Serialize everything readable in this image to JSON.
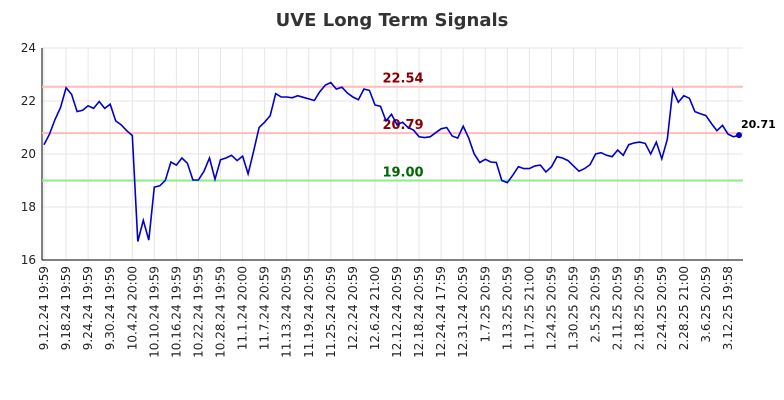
{
  "chart_data": {
    "type": "line",
    "title": "UVE Long Term Signals",
    "ylim": [
      16,
      24
    ],
    "yticks": [
      16,
      18,
      20,
      22,
      24
    ],
    "grid": true,
    "line_color": "#0000cc",
    "xticks": [
      "9.12.24 19:59",
      "9.18.24 19:59",
      "9.24.24 19:59",
      "9.30.24 19:59",
      "10.4.24 20:00",
      "10.10.24 19:59",
      "10.16.24 19:59",
      "10.22.24 19:59",
      "10.28.24 19:59",
      "11.1.24 20:00",
      "11.7.24 20:59",
      "11.13.24 20:59",
      "11.19.24 20:59",
      "11.25.24 20:59",
      "12.2.24 20:59",
      "12.6.24 21:00",
      "12.12.24 20:59",
      "12.18.24 20:59",
      "12.24.24 17:59",
      "12.31.24 20:59",
      "1.7.25 20:59",
      "1.13.25 20:59",
      "1.17.25 21:00",
      "1.24.25 20:59",
      "1.30.25 20:59",
      "2.5.25 20:59",
      "2.11.25 20:59",
      "2.18.25 20:59",
      "2.24.25 20:59",
      "2.28.25 21:00",
      "3.6.25 20:59",
      "3.12.25 19:58"
    ],
    "xtick_index": [
      0,
      4,
      8,
      12,
      16,
      20,
      24,
      28,
      32,
      36,
      40,
      44,
      48,
      52,
      56,
      60,
      64,
      68,
      72,
      76,
      80,
      84,
      88,
      92,
      96,
      100,
      104,
      108,
      112,
      116,
      120,
      124
    ],
    "levels": [
      {
        "value": 22.54,
        "label": "22.54",
        "line_color": "#ffbbbb",
        "text_color": "#880000"
      },
      {
        "value": 20.79,
        "label": "20.79",
        "line_color": "#ffbbbb",
        "text_color": "#880000"
      },
      {
        "value": 19.0,
        "label": "19.00",
        "line_color": "#88ee88",
        "text_color": "#006600"
      }
    ],
    "last_label": "20.71",
    "values": [
      20.35,
      20.75,
      21.3,
      21.75,
      22.5,
      22.25,
      21.6,
      21.65,
      21.82,
      21.72,
      21.98,
      21.72,
      21.88,
      21.25,
      21.1,
      20.88,
      20.7,
      16.7,
      17.5,
      16.75,
      18.75,
      18.8,
      19.0,
      19.7,
      19.58,
      19.85,
      19.65,
      19.02,
      19.02,
      19.35,
      19.85,
      19.05,
      19.78,
      19.85,
      19.95,
      19.75,
      19.92,
      19.25,
      20.1,
      21.0,
      21.2,
      21.45,
      22.28,
      22.15,
      22.15,
      22.12,
      22.2,
      22.14,
      22.08,
      22.02,
      22.35,
      22.6,
      22.7,
      22.45,
      22.52,
      22.3,
      22.15,
      22.05,
      22.45,
      22.4,
      21.85,
      21.8,
      21.25,
      21.5,
      21.1,
      21.2,
      21.0,
      20.9,
      20.65,
      20.62,
      20.65,
      20.8,
      20.95,
      21.0,
      20.68,
      20.6,
      21.05,
      20.6,
      20.0,
      19.68,
      19.8,
      19.7,
      19.68,
      19.0,
      18.92,
      19.2,
      19.52,
      19.45,
      19.45,
      19.55,
      19.58,
      19.32,
      19.52,
      19.9,
      19.85,
      19.75,
      19.55,
      19.35,
      19.45,
      19.6,
      20.0,
      20.05,
      19.95,
      19.9,
      20.15,
      19.95,
      20.35,
      20.42,
      20.45,
      20.4,
      20.0,
      20.45,
      19.82,
      20.55,
      22.42,
      21.95,
      22.2,
      22.1,
      21.6,
      21.52,
      21.45,
      21.15,
      20.88,
      21.08,
      20.75,
      20.65,
      20.71
    ]
  }
}
